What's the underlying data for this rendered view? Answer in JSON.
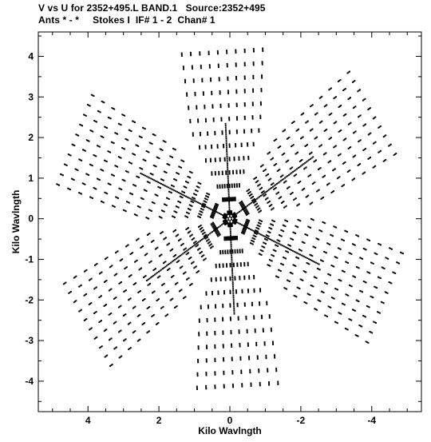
{
  "header": {
    "line1": "V vs U for 2352+495.L BAND.1   Source:2352+495",
    "line2": "Ants * - *     Stokes I  IF# 1 - 2  Chan# 1"
  },
  "chart_data": {
    "type": "scatter",
    "xlabel": "Kilo Wavlngth",
    "ylabel": "Kilo Wavlngth",
    "xlim": [
      5.4,
      -5.4
    ],
    "ylim": [
      -4.75,
      4.6
    ],
    "x_reversed": true,
    "x_ticks": [
      4,
      2,
      0,
      -2,
      -4
    ],
    "x_tick_labels": [
      "4",
      "2",
      "0",
      "-2",
      "-4"
    ],
    "y_ticks": [
      -4,
      -3,
      -2,
      -1,
      0,
      1,
      2,
      3,
      4
    ],
    "y_tick_labels": [
      "-4",
      "-3",
      "-2",
      "-1",
      "0",
      "1",
      "2",
      "3",
      "4"
    ],
    "grid": false,
    "legend": "none",
    "marker_color": "#000000",
    "pattern": {
      "description_free": true,
      "arms": [
        {
          "angle_deg": 87,
          "length": 4.3
        },
        {
          "angle_deg": 24,
          "length": 5.0
        },
        {
          "angle_deg": 147,
          "length": 5.1
        },
        {
          "angle_deg": 267,
          "length": 4.3
        },
        {
          "angle_deg": 204,
          "length": 5.0
        },
        {
          "angle_deg": 327,
          "length": 5.1
        }
      ],
      "radial_sample_step": 0.33,
      "track_count": 10,
      "track_offset_step": 0.17
    }
  }
}
